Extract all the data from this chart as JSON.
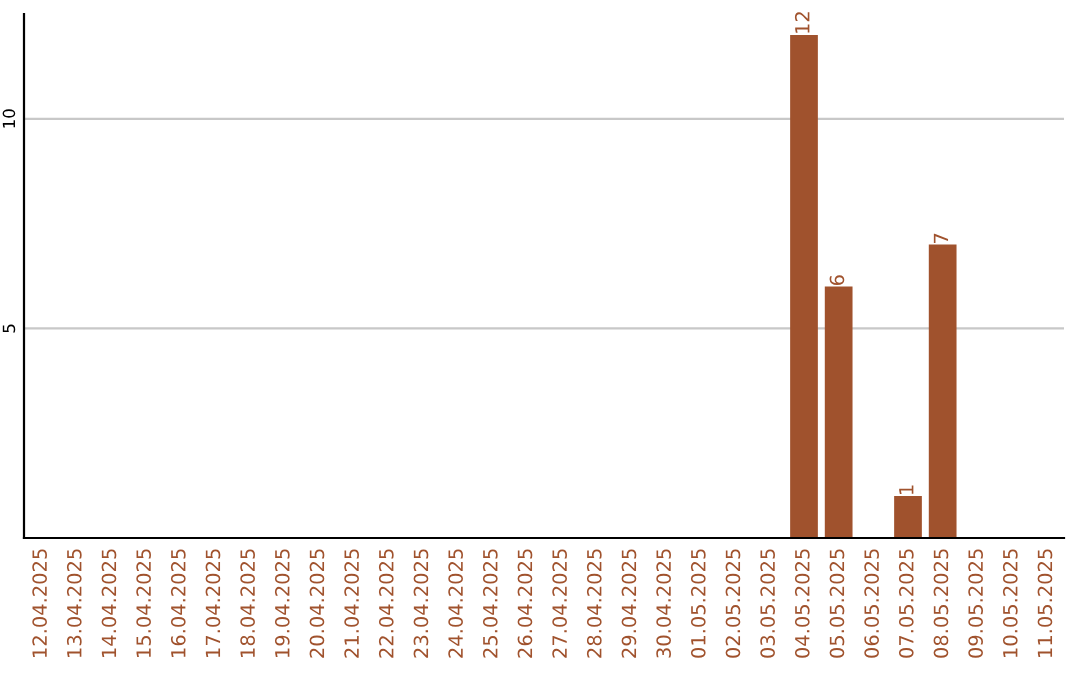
{
  "chart_data": {
    "type": "bar",
    "categories": [
      "12.04.2025",
      "13.04.2025",
      "14.04.2025",
      "15.04.2025",
      "16.04.2025",
      "17.04.2025",
      "18.04.2025",
      "19.04.2025",
      "20.04.2025",
      "21.04.2025",
      "22.04.2025",
      "23.04.2025",
      "24.04.2025",
      "25.04.2025",
      "26.04.2025",
      "27.04.2025",
      "28.04.2025",
      "29.04.2025",
      "30.04.2025",
      "01.05.2025",
      "02.05.2025",
      "03.05.2025",
      "04.05.2025",
      "05.05.2025",
      "06.05.2025",
      "07.05.2025",
      "08.05.2025",
      "09.05.2025",
      "10.05.2025",
      "11.05.2025"
    ],
    "values": [
      0,
      0,
      0,
      0,
      0,
      0,
      0,
      0,
      0,
      0,
      0,
      0,
      0,
      0,
      0,
      0,
      0,
      0,
      0,
      0,
      0,
      0,
      12,
      6,
      0,
      1,
      7,
      0,
      0,
      0
    ],
    "value_labels": [
      null,
      null,
      null,
      null,
      null,
      null,
      null,
      null,
      null,
      null,
      null,
      null,
      null,
      null,
      null,
      null,
      null,
      null,
      null,
      null,
      null,
      null,
      "12",
      "6",
      null,
      "1",
      "7",
      null,
      null,
      null
    ],
    "color": "#a0522d",
    "ylim": [
      0,
      12.5
    ],
    "yticks": [
      5,
      10
    ],
    "grid": "y"
  }
}
